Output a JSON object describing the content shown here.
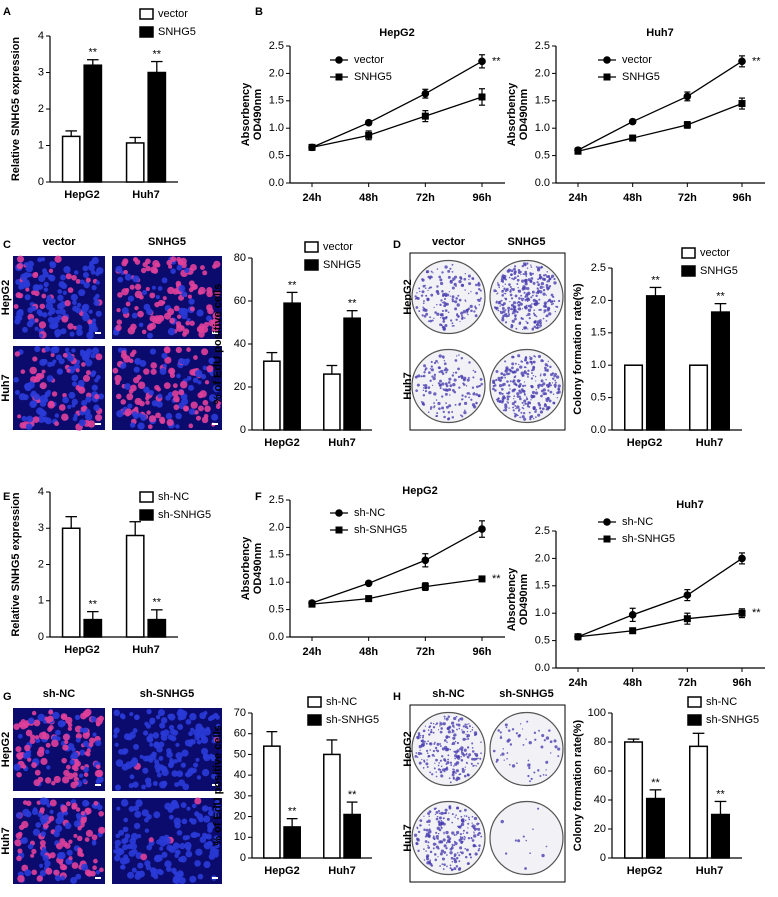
{
  "panel_labels": [
    "A",
    "B",
    "C",
    "D",
    "E",
    "F",
    "G",
    "H"
  ],
  "image_panels": [
    {
      "columns": [
        "vector",
        "SNHG5"
      ],
      "rows": [
        "HepG2",
        "Huh7"
      ]
    },
    {
      "columns": [
        "vector",
        "SNHG5"
      ],
      "rows": [
        "HepG2",
        "Huh7"
      ]
    },
    {
      "columns": [
        "sh-NC",
        "sh-SNHG5"
      ],
      "rows": [
        "HepG2",
        "Huh7"
      ]
    },
    {
      "columns": [
        "sh-NC",
        "sh-SNHG5"
      ],
      "rows": [
        "HepG2",
        "Huh7"
      ]
    }
  ],
  "chart_data": [
    {
      "type": "bar",
      "ylabel": "Relative SNHG5 expression",
      "categories": [
        "HepG2",
        "Huh7"
      ],
      "ylim": [
        0,
        4
      ],
      "yticks": [
        0,
        1,
        2,
        3,
        4
      ],
      "series": [
        {
          "name": "vector",
          "color": "#ffffff",
          "values": [
            1.25,
            1.07
          ],
          "errors": [
            0.15,
            0.15
          ]
        },
        {
          "name": "SNHG5",
          "color": "#000000",
          "values": [
            3.2,
            3.0
          ],
          "errors": [
            0.15,
            0.3
          ],
          "significance": [
            "**",
            "**"
          ]
        }
      ]
    },
    {
      "type": "line",
      "title": "HepG2",
      "ylabel": [
        "Absorbency",
        "OD490nm"
      ],
      "categories": [
        "24h",
        "48h",
        "72h",
        "96h"
      ],
      "ylim": [
        0,
        2.5
      ],
      "yticks": [
        {
          "value": 0,
          "label": "0.0"
        },
        0.5,
        {
          "value": 1,
          "label": "1.0"
        },
        1.5,
        {
          "value": 2,
          "label": "2.0"
        },
        2.5
      ],
      "series": [
        {
          "name": "vector",
          "color": "#000000",
          "marker": "circle",
          "values": [
            0.65,
            1.1,
            1.63,
            2.22
          ],
          "errors": [
            0.04,
            0.04,
            0.08,
            0.12
          ],
          "significance": [
            null,
            null,
            null,
            "**"
          ]
        },
        {
          "name": "SNHG5",
          "color": "#000000",
          "marker": "square",
          "values": [
            0.65,
            0.87,
            1.22,
            1.57
          ],
          "errors": [
            0.04,
            0.08,
            0.1,
            0.15
          ]
        }
      ]
    },
    {
      "type": "line",
      "title": "Huh7",
      "ylabel": [
        "Absorbency",
        "OD490nm"
      ],
      "categories": [
        "24h",
        "48h",
        "72h",
        "96h"
      ],
      "ylim": [
        0,
        2.5
      ],
      "yticks": [
        {
          "value": 0,
          "label": "0.0"
        },
        0.5,
        {
          "value": 1,
          "label": "1.0"
        },
        1.5,
        {
          "value": 2,
          "label": "2.0"
        },
        2.5
      ],
      "series": [
        {
          "name": "vector",
          "color": "#000000",
          "marker": "circle",
          "values": [
            0.6,
            1.12,
            1.58,
            2.22
          ],
          "errors": [
            0.04,
            0.03,
            0.08,
            0.1
          ],
          "significance": [
            null,
            null,
            null,
            "**"
          ]
        },
        {
          "name": "SNHG5",
          "color": "#000000",
          "marker": "square",
          "values": [
            0.58,
            0.82,
            1.06,
            1.45
          ],
          "errors": [
            0.04,
            0.05,
            0.06,
            0.1
          ]
        }
      ]
    },
    {
      "type": "bar",
      "ylabel": "% of EdU positive cells",
      "categories": [
        "HepG2",
        "Huh7"
      ],
      "ylim": [
        0,
        80
      ],
      "yticks": [
        0,
        20,
        40,
        60,
        80
      ],
      "series": [
        {
          "name": "vector",
          "color": "#ffffff",
          "values": [
            32,
            26
          ],
          "errors": [
            4,
            4
          ]
        },
        {
          "name": "SNHG5",
          "color": "#000000",
          "values": [
            59,
            52
          ],
          "errors": [
            5,
            3.5
          ],
          "significance": [
            "**",
            "**"
          ]
        }
      ]
    },
    {
      "type": "bar",
      "ylabel": "Colony formation rate(%)",
      "categories": [
        "HepG2",
        "Huh7"
      ],
      "ylim": [
        0,
        2.5
      ],
      "yticks": [
        {
          "value": 0,
          "label": "0.0"
        },
        0.5,
        {
          "value": 1,
          "label": "1.0"
        },
        1.5,
        {
          "value": 2,
          "label": "2.0"
        },
        2.5
      ],
      "series": [
        {
          "name": "vector",
          "color": "#ffffff",
          "values": [
            1,
            1
          ],
          "errors": [
            0,
            0
          ]
        },
        {
          "name": "SNHG5",
          "color": "#000000",
          "values": [
            2.07,
            1.82
          ],
          "errors": [
            0.13,
            0.13
          ],
          "significance": [
            "**",
            "**"
          ]
        }
      ]
    },
    {
      "type": "bar",
      "ylabel": "Relative SNHG5 expression",
      "categories": [
        "HepG2",
        "Huh7"
      ],
      "ylim": [
        0,
        4
      ],
      "yticks": [
        0,
        1,
        2,
        3,
        4
      ],
      "series": [
        {
          "name": "sh-NC",
          "color": "#ffffff",
          "values": [
            3.0,
            2.8
          ],
          "errors": [
            0.32,
            0.38
          ]
        },
        {
          "name": "sh-SNHG5",
          "color": "#000000",
          "values": [
            0.48,
            0.48
          ],
          "errors": [
            0.22,
            0.27
          ],
          "significance": [
            "**",
            "**"
          ]
        }
      ]
    },
    {
      "type": "line",
      "title": "HepG2",
      "ylabel": [
        "Absorbency",
        "OD490nm"
      ],
      "categories": [
        "24h",
        "48h",
        "72h",
        "96h"
      ],
      "ylim": [
        0,
        2.5
      ],
      "yticks": [
        {
          "value": 0,
          "label": "0.0"
        },
        0.5,
        {
          "value": 1,
          "label": "1.0"
        },
        1.5,
        {
          "value": 2,
          "label": "2.0"
        },
        2.5
      ],
      "series": [
        {
          "name": "sh-NC",
          "color": "#000000",
          "marker": "circle",
          "values": [
            0.62,
            0.98,
            1.4,
            1.97
          ],
          "errors": [
            0.03,
            0.03,
            0.12,
            0.15
          ]
        },
        {
          "name": "sh-SNHG5",
          "color": "#000000",
          "marker": "square",
          "values": [
            0.6,
            0.7,
            0.92,
            1.06
          ],
          "errors": [
            0.03,
            0.05,
            0.07,
            0.04
          ],
          "significance": [
            null,
            null,
            null,
            "**"
          ]
        }
      ]
    },
    {
      "type": "line",
      "title": "Huh7",
      "ylabel": [
        "Absorbency",
        "OD490nm"
      ],
      "categories": [
        "24h",
        "48h",
        "72h",
        "96h"
      ],
      "ylim": [
        0,
        2.5
      ],
      "yticks": [
        {
          "value": 0,
          "label": "0.0"
        },
        0.5,
        {
          "value": 1,
          "label": "1.0"
        },
        1.5,
        {
          "value": 2,
          "label": "2.0"
        },
        2.5
      ],
      "series": [
        {
          "name": "sh-NC",
          "color": "#000000",
          "marker": "circle",
          "values": [
            0.57,
            0.97,
            1.33,
            2.0
          ],
          "errors": [
            0.03,
            0.12,
            0.1,
            0.1
          ]
        },
        {
          "name": "sh-SNHG5",
          "color": "#000000",
          "marker": "square",
          "values": [
            0.57,
            0.68,
            0.9,
            1.0
          ],
          "errors": [
            0.02,
            0.04,
            0.1,
            0.08
          ],
          "significance": [
            null,
            null,
            null,
            "**"
          ]
        }
      ]
    },
    {
      "type": "bar",
      "ylabel": "% of EdU positive cells",
      "categories": [
        "HepG2",
        "Huh7"
      ],
      "ylim": [
        0,
        70
      ],
      "yticks": [
        0,
        10,
        20,
        30,
        40,
        50,
        60,
        70
      ],
      "series": [
        {
          "name": "sh-NC",
          "color": "#ffffff",
          "values": [
            54,
            50
          ],
          "errors": [
            7,
            7
          ]
        },
        {
          "name": "sh-SNHG5",
          "color": "#000000",
          "values": [
            15,
            21
          ],
          "errors": [
            4,
            6
          ],
          "significance": [
            "**",
            "**"
          ]
        }
      ]
    },
    {
      "type": "bar",
      "ylabel": "Colony formation rate(%)",
      "categories": [
        "HepG2",
        "Huh7"
      ],
      "ylim": [
        0,
        100
      ],
      "yticks": [
        0,
        20,
        40,
        60,
        80,
        100
      ],
      "series": [
        {
          "name": "sh-NC",
          "color": "#ffffff",
          "values": [
            80,
            77
          ],
          "errors": [
            2,
            9
          ]
        },
        {
          "name": "sh-SNHG5",
          "color": "#000000",
          "values": [
            41,
            30
          ],
          "errors": [
            6,
            9
          ],
          "significance": [
            "**",
            "**"
          ]
        }
      ]
    }
  ]
}
